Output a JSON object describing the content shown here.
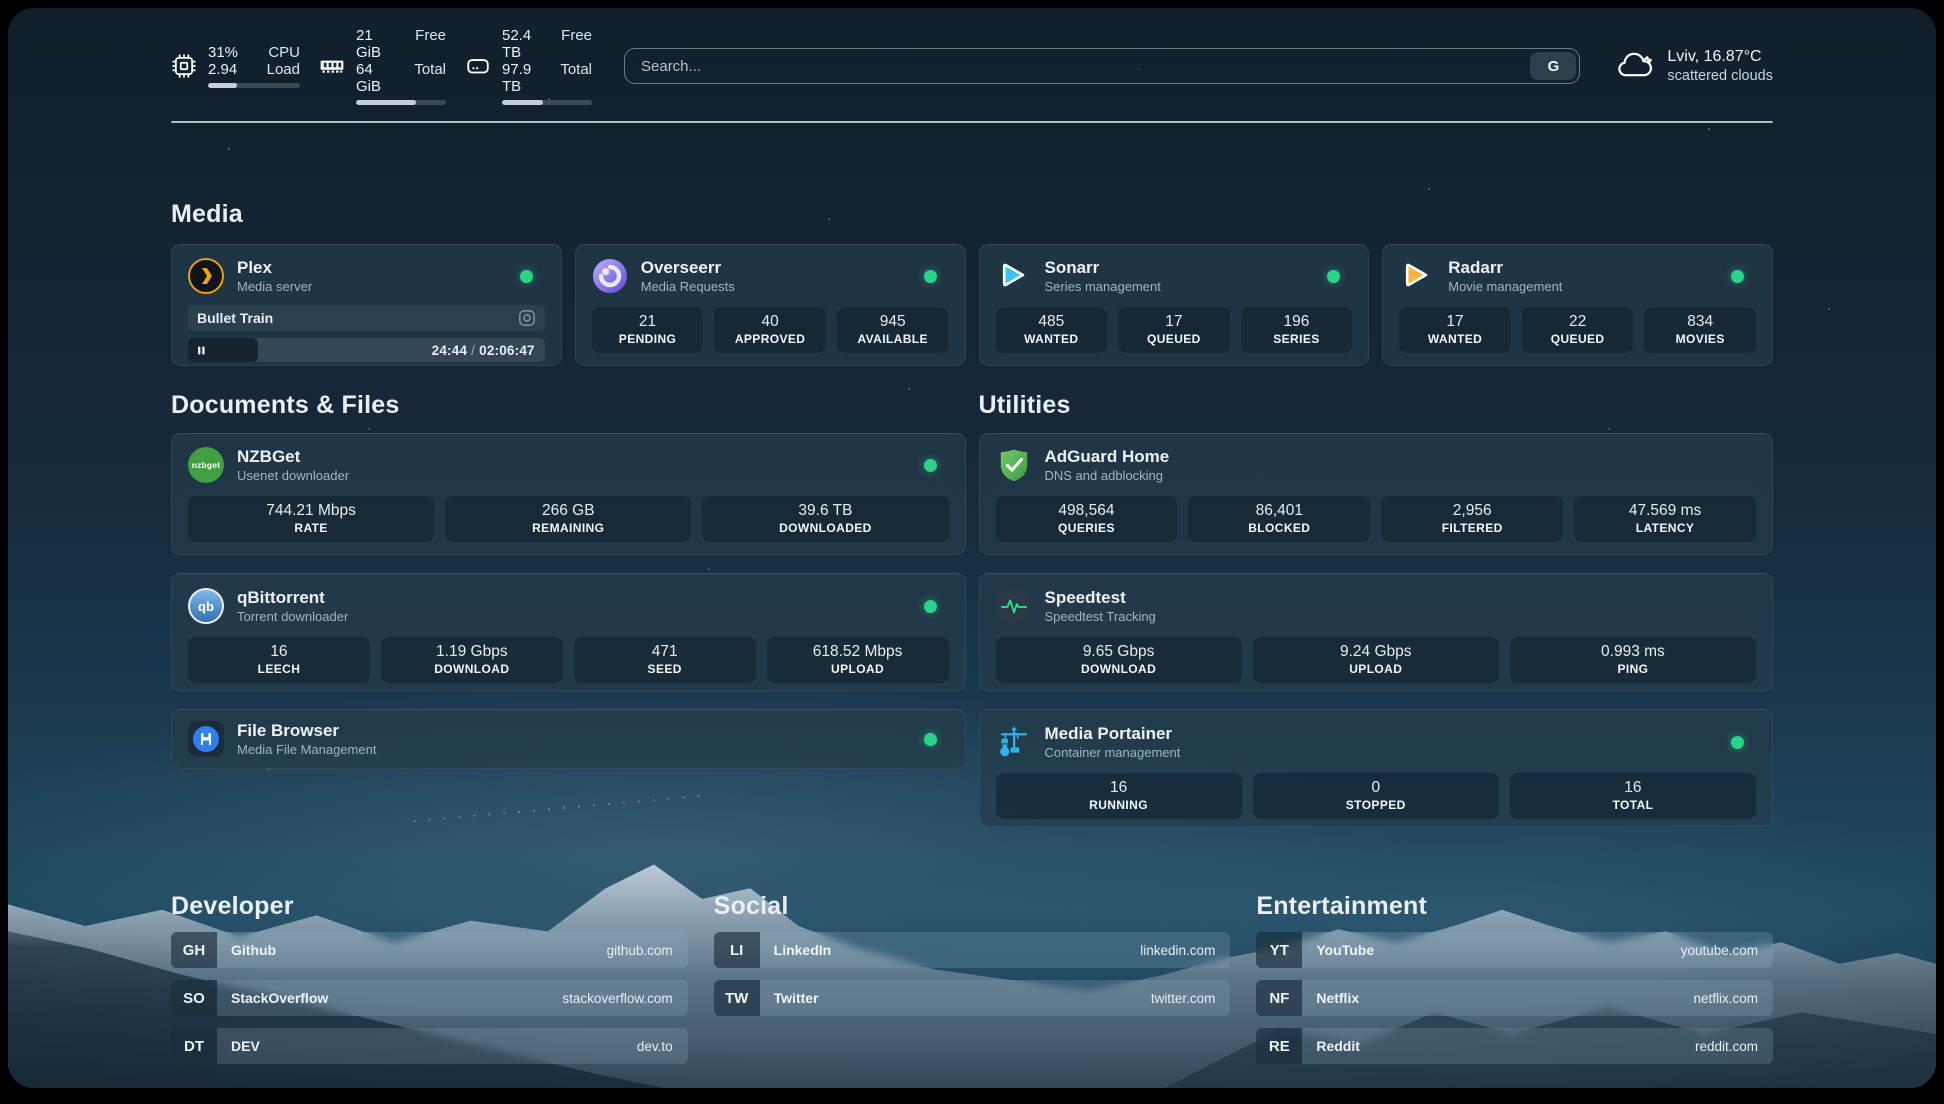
{
  "topbar": {
    "system": [
      {
        "icon": "cpu-chip-icon",
        "line1_value": "31%",
        "line1_label": "CPU",
        "line2_value": "2.94",
        "line2_label": "Load",
        "progress_pct": 31
      },
      {
        "icon": "ram-icon",
        "line1_value": "21 GiB",
        "line1_label": "Free",
        "line2_value": "64 GiB",
        "line2_label": "Total",
        "progress_pct": 67
      },
      {
        "icon": "hard-drive-icon",
        "line1_value": "52.4 TB",
        "line1_label": "Free",
        "line2_value": "97.9 TB",
        "line2_label": "Total",
        "progress_pct": 46
      }
    ],
    "search": {
      "placeholder": "Search...",
      "engine_button": "G"
    },
    "weather": {
      "icon": "cloud-icon",
      "location_temperature": "Lviv, 16.87°C",
      "condition": "scattered clouds"
    }
  },
  "sections": {
    "media": {
      "title": "Media",
      "cards": [
        {
          "icon": "plex-logo-icon",
          "name": "Plex",
          "subtitle": "Media server",
          "online": true,
          "now_playing": {
            "title": "Bullet Train",
            "state": "paused",
            "elapsed": "24:44",
            "separator": "/",
            "duration": "02:06:47",
            "progress_pct": 19.5
          }
        },
        {
          "icon": "overseerr-logo-icon",
          "name": "Overseerr",
          "subtitle": "Media Requests",
          "online": true,
          "stats": [
            {
              "value": "21",
              "label": "PENDING"
            },
            {
              "value": "40",
              "label": "APPROVED"
            },
            {
              "value": "945",
              "label": "AVAILABLE"
            }
          ]
        },
        {
          "icon": "sonarr-logo-icon",
          "name": "Sonarr",
          "subtitle": "Series management",
          "online": true,
          "stats": [
            {
              "value": "485",
              "label": "WANTED"
            },
            {
              "value": "17",
              "label": "QUEUED"
            },
            {
              "value": "196",
              "label": "SERIES"
            }
          ]
        },
        {
          "icon": "radarr-logo-icon",
          "name": "Radarr",
          "subtitle": "Movie management",
          "online": true,
          "stats": [
            {
              "value": "17",
              "label": "WANTED"
            },
            {
              "value": "22",
              "label": "QUEUED"
            },
            {
              "value": "834",
              "label": "MOVIES"
            }
          ]
        }
      ]
    },
    "documents": {
      "title": "Documents & Files",
      "cards": [
        {
          "icon": "nzbget-logo-icon",
          "name": "NZBGet",
          "subtitle": "Usenet downloader",
          "online": true,
          "logo_text": "nzbget",
          "stats": [
            {
              "value": "744.21 Mbps",
              "label": "RATE"
            },
            {
              "value": "266 GB",
              "label": "REMAINING"
            },
            {
              "value": "39.6 TB",
              "label": "DOWNLOADED"
            }
          ]
        },
        {
          "icon": "qbittorrent-logo-icon",
          "name": "qBittorrent",
          "subtitle": "Torrent downloader",
          "online": true,
          "logo_text": "qb",
          "stats": [
            {
              "value": "16",
              "label": "LEECH"
            },
            {
              "value": "1.19 Gbps",
              "label": "DOWNLOAD"
            },
            {
              "value": "471",
              "label": "SEED"
            },
            {
              "value": "618.52 Mbps",
              "label": "UPLOAD"
            }
          ]
        },
        {
          "icon": "filebrowser-logo-icon",
          "name": "File Browser",
          "subtitle": "Media File Management",
          "online": true
        }
      ]
    },
    "utilities": {
      "title": "Utilities",
      "cards": [
        {
          "icon": "adguard-logo-icon",
          "name": "AdGuard Home",
          "subtitle": "DNS and adblocking",
          "stats": [
            {
              "value": "498,564",
              "label": "QUERIES"
            },
            {
              "value": "86,401",
              "label": "BLOCKED"
            },
            {
              "value": "2,956",
              "label": "FILTERED"
            },
            {
              "value": "47.569 ms",
              "label": "LATENCY"
            }
          ]
        },
        {
          "icon": "speedtest-logo-icon",
          "name": "Speedtest",
          "subtitle": "Speedtest Tracking",
          "stats": [
            {
              "value": "9.65 Gbps",
              "label": "DOWNLOAD"
            },
            {
              "value": "9.24 Gbps",
              "label": "UPLOAD"
            },
            {
              "value": "0.993 ms",
              "label": "PING"
            }
          ]
        },
        {
          "icon": "portainer-logo-icon",
          "name": "Media Portainer",
          "subtitle": "Container management",
          "online": true,
          "stats": [
            {
              "value": "16",
              "label": "RUNNING"
            },
            {
              "value": "0",
              "label": "STOPPED"
            },
            {
              "value": "16",
              "label": "TOTAL"
            }
          ]
        }
      ]
    },
    "developer": {
      "title": "Developer",
      "links": [
        {
          "abbr": "GH",
          "name": "Github",
          "url": "github.com"
        },
        {
          "abbr": "SO",
          "name": "StackOverflow",
          "url": "stackoverflow.com"
        },
        {
          "abbr": "DT",
          "name": "DEV",
          "url": "dev.to"
        }
      ]
    },
    "social": {
      "title": "Social",
      "links": [
        {
          "abbr": "LI",
          "name": "LinkedIn",
          "url": "linkedin.com"
        },
        {
          "abbr": "TW",
          "name": "Twitter",
          "url": "twitter.com"
        }
      ]
    },
    "entertainment": {
      "title": "Entertainment",
      "links": [
        {
          "abbr": "YT",
          "name": "YouTube",
          "url": "youtube.com"
        },
        {
          "abbr": "NF",
          "name": "Netflix",
          "url": "netflix.com"
        },
        {
          "abbr": "RE",
          "name": "Reddit",
          "url": "reddit.com"
        }
      ]
    }
  },
  "colors": {
    "status_online": "#2bd389",
    "plex_amber": "#e8a00d",
    "overseerr_purple": "#8b74ec",
    "sonarr_blue": "#35c5f1",
    "radarr_yellow": "#ffb53c",
    "nzbget_green": "#3f9f42",
    "qbittorrent_blue": "#336fb3",
    "filebrowser_blue": "#2f80ed",
    "adguard_green": "#4fa84f",
    "speedtest_green": "#2fe08a",
    "portainer_blue": "#2fb2ee"
  }
}
